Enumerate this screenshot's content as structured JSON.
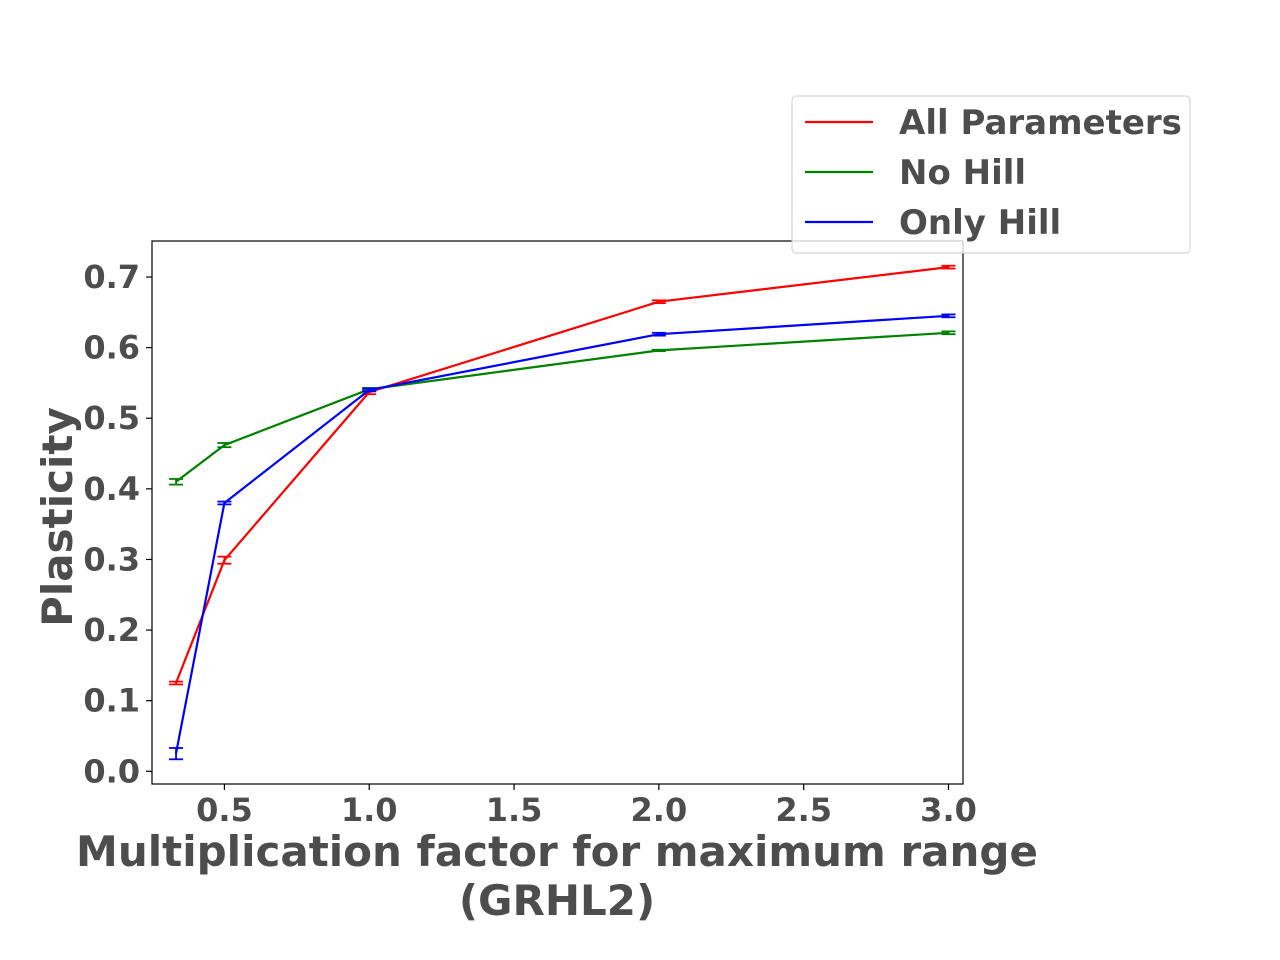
{
  "chart_data": {
    "type": "line",
    "title": "",
    "xlabel_lines": [
      "Multiplication factor for maximum range",
      "(GRHL2)"
    ],
    "ylabel": "Plasticity",
    "xlim": [
      0.25,
      3.05
    ],
    "ylim": [
      -0.018,
      0.751
    ],
    "xticks": [
      0.5,
      1.0,
      1.5,
      2.0,
      2.5,
      3.0
    ],
    "xtick_labels": [
      "0.5",
      "1.0",
      "1.5",
      "2.0",
      "2.5",
      "3.0"
    ],
    "yticks": [
      0.0,
      0.1,
      0.2,
      0.3,
      0.4,
      0.5,
      0.6,
      0.7
    ],
    "ytick_labels": [
      "0.0",
      "0.1",
      "0.2",
      "0.3",
      "0.4",
      "0.5",
      "0.6",
      "0.7"
    ],
    "grid": false,
    "legend_position": "top-right (outside plot)",
    "x": [
      0.333,
      0.5,
      1.0,
      2.0,
      3.0
    ],
    "series": [
      {
        "name": "All Parameters",
        "color": "#ff0000",
        "values": [
          0.125,
          0.299,
          0.537,
          0.665,
          0.714
        ],
        "errors": [
          0.002,
          0.005,
          0.003,
          0.002,
          0.002
        ]
      },
      {
        "name": "No Hill",
        "color": "#008000",
        "values": [
          0.41,
          0.462,
          0.541,
          0.596,
          0.621
        ],
        "errors": [
          0.004,
          0.003,
          0.002,
          0.001,
          0.002
        ]
      },
      {
        "name": "Only Hill",
        "color": "#0000ff",
        "values": [
          0.025,
          0.38,
          0.54,
          0.619,
          0.645
        ],
        "errors": [
          0.008,
          0.002,
          0.002,
          0.002,
          0.002
        ]
      }
    ]
  }
}
